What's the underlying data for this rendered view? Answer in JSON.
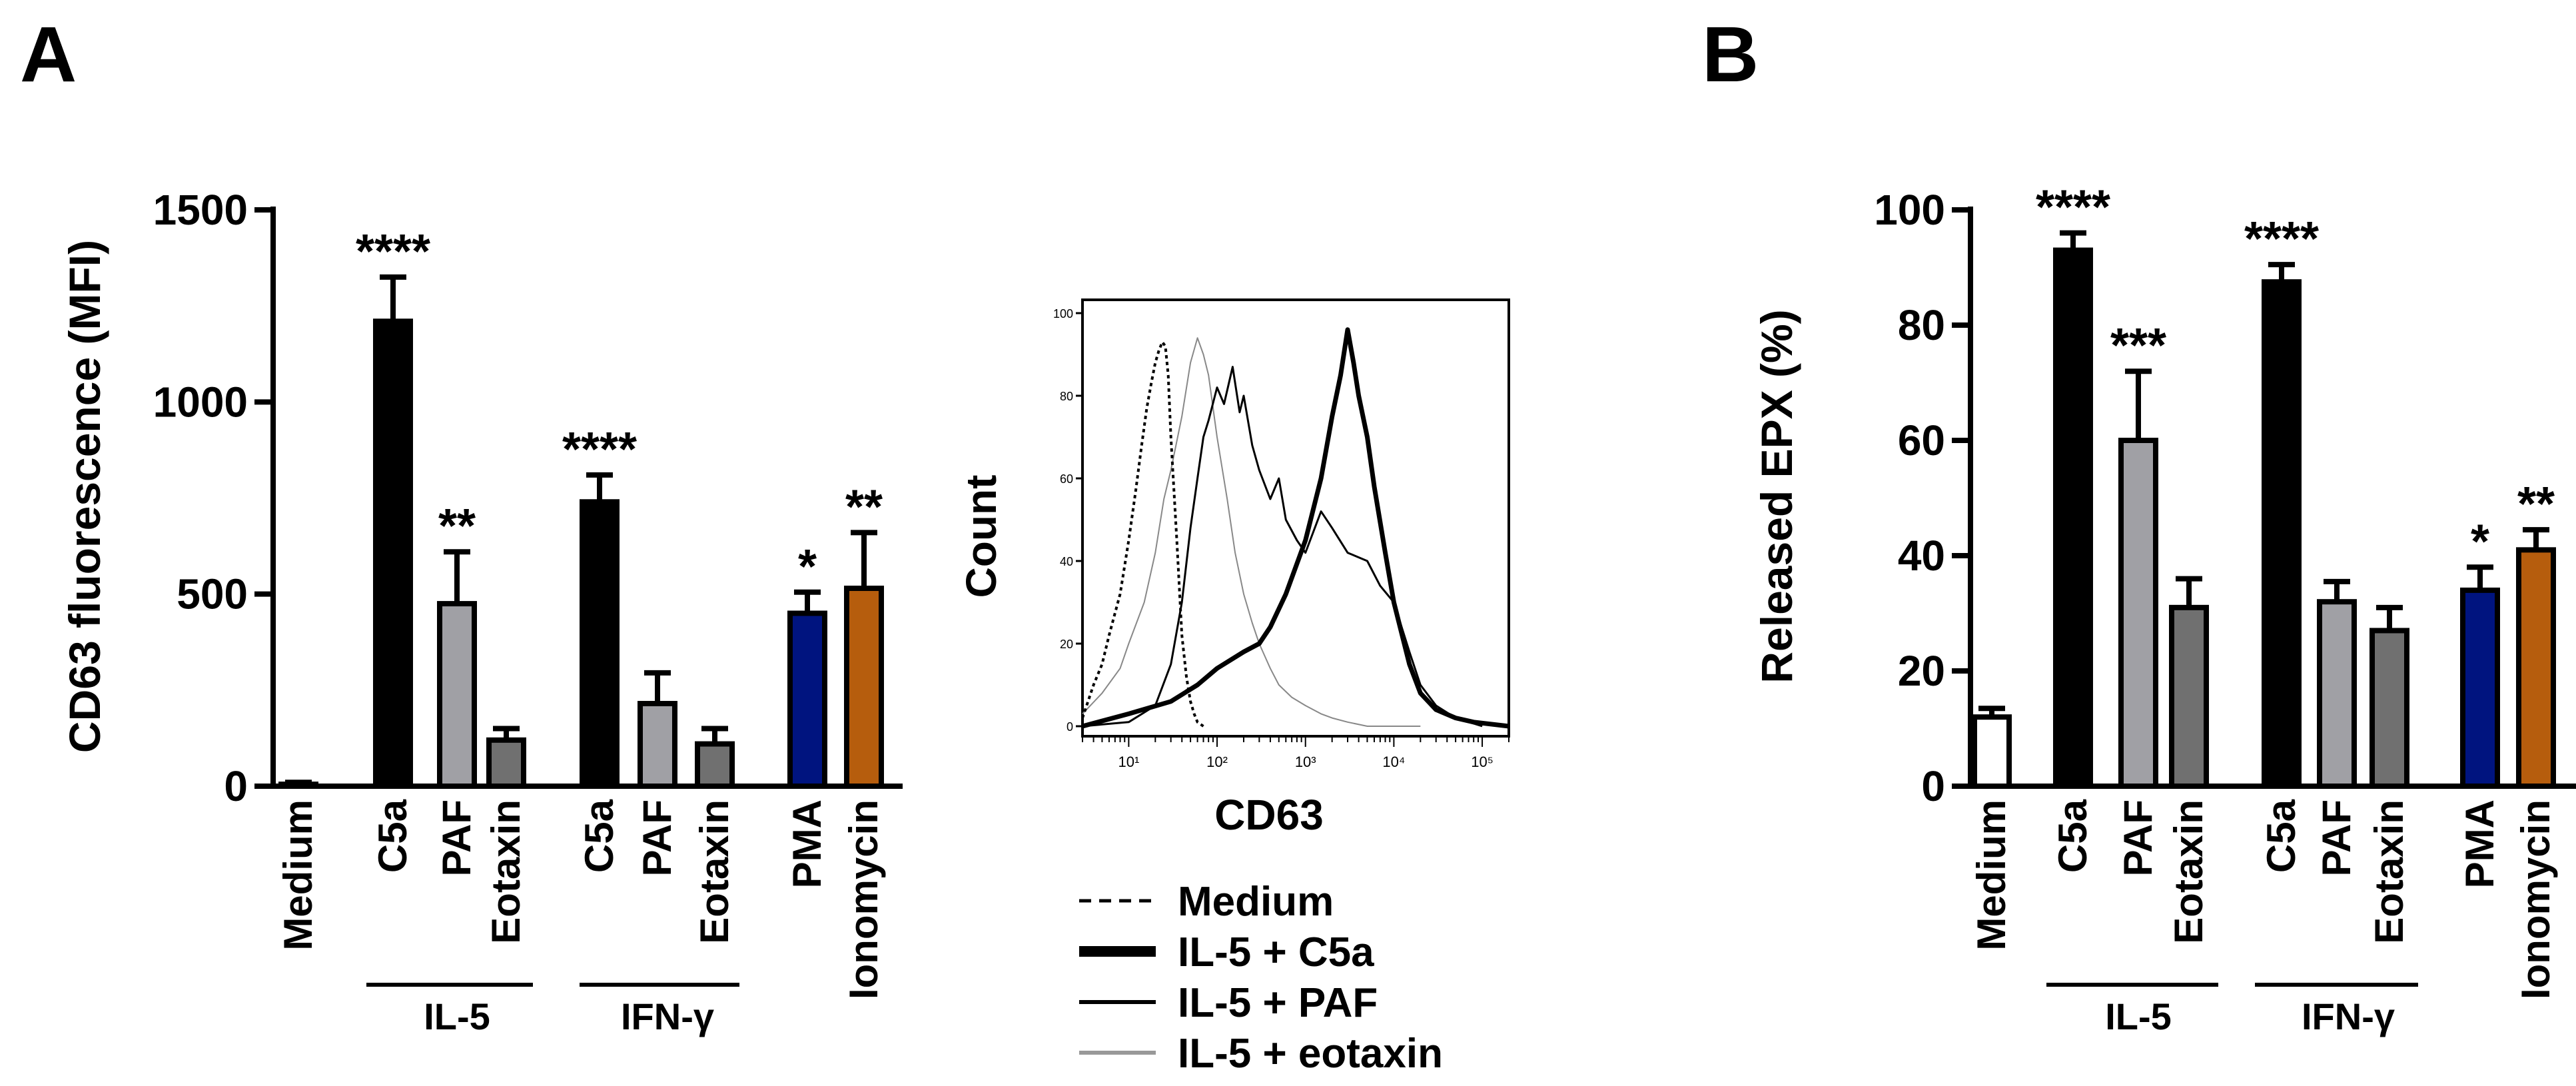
{
  "panels": {
    "a": "A",
    "b": "B"
  },
  "group_labels": {
    "il5": "IL-5",
    "ifng": "IFN-γ"
  },
  "chart_data": [
    {
      "type": "bar",
      "id": "A",
      "title": "",
      "xlabel": "",
      "ylabel": "CD63 fluorescence (MFI)",
      "ylim": [
        0,
        1500
      ],
      "yticks": [
        0,
        500,
        1000,
        1500
      ],
      "categories": [
        "Medium",
        "C5a",
        "PAF",
        "Eotaxin",
        "C5a",
        "PAF",
        "Eotaxin",
        "PMA",
        "Ionomycin"
      ],
      "groups": [
        "",
        "IL-5",
        "IL-5",
        "IL-5",
        "IFN-γ",
        "IFN-γ",
        "IFN-γ",
        "",
        ""
      ],
      "values": [
        5,
        1210,
        475,
        120,
        740,
        215,
        110,
        450,
        515
      ],
      "errors": [
        5,
        115,
        135,
        30,
        70,
        80,
        40,
        55,
        145
      ],
      "significance": [
        "",
        "****",
        "**",
        "",
        "****",
        "",
        "",
        "*",
        "**"
      ],
      "colors": [
        "#ffffff",
        "#000000",
        "#a0a0a5",
        "#707070",
        "#000000",
        "#a0a0a5",
        "#707070",
        "#00147f",
        "#b65d0d"
      ]
    },
    {
      "type": "line",
      "id": "A-histogram",
      "title": "",
      "xlabel": "CD63",
      "ylabel": "Count",
      "xscale": "log",
      "xlim": [
        3,
        200000
      ],
      "ylim": [
        0,
        100
      ],
      "yticks": [
        0,
        20,
        40,
        60,
        80,
        100
      ],
      "xticks": [
        "10¹",
        "10²",
        "10³",
        "10⁴",
        "10⁵"
      ],
      "legend_position": "below",
      "series": [
        {
          "name": "Medium",
          "style": "dashed",
          "x": [
            3,
            4,
            5,
            6,
            8,
            10,
            12,
            14,
            16,
            18,
            20,
            22,
            24,
            26,
            28,
            30,
            35,
            40,
            45,
            50,
            55,
            60,
            70
          ],
          "y": [
            2,
            10,
            15,
            22,
            32,
            45,
            57,
            68,
            77,
            83,
            88,
            91,
            93,
            92,
            85,
            70,
            45,
            22,
            12,
            6,
            3,
            1,
            0
          ]
        },
        {
          "name": "IL-5 + C5a",
          "style": "thick",
          "x": [
            3,
            10,
            30,
            60,
            100,
            200,
            300,
            400,
            600,
            1000,
            1500,
            2000,
            2500,
            3000,
            3500,
            4000,
            5000,
            6000,
            8000,
            10000,
            15000,
            20000,
            30000,
            50000,
            80000,
            200000
          ],
          "y": [
            0,
            3,
            6,
            10,
            14,
            18,
            20,
            24,
            32,
            45,
            60,
            75,
            85,
            96,
            88,
            80,
            70,
            58,
            42,
            30,
            15,
            8,
            4,
            2,
            1,
            0
          ]
        },
        {
          "name": "IL-5 + PAF",
          "style": "thin",
          "x": [
            3,
            10,
            20,
            30,
            40,
            50,
            60,
            70,
            80,
            100,
            120,
            150,
            180,
            200,
            250,
            300,
            400,
            500,
            600,
            800,
            1000,
            1500,
            2000,
            3000,
            5000,
            7000,
            10000,
            15000,
            20000,
            30000,
            50000,
            100000
          ],
          "y": [
            0,
            1,
            5,
            15,
            30,
            48,
            60,
            70,
            74,
            82,
            78,
            87,
            76,
            80,
            68,
            62,
            55,
            60,
            50,
            45,
            42,
            52,
            48,
            42,
            40,
            34,
            30,
            18,
            10,
            5,
            2,
            0
          ]
        },
        {
          "name": "IL-5 + eotaxin",
          "style": "gray",
          "x": [
            3,
            5,
            8,
            10,
            15,
            20,
            25,
            30,
            40,
            50,
            60,
            70,
            80,
            100,
            130,
            160,
            200,
            250,
            300,
            400,
            500,
            700,
            1000,
            1500,
            2000,
            3000,
            5000,
            10000,
            20000
          ],
          "y": [
            3,
            8,
            14,
            20,
            30,
            42,
            55,
            62,
            75,
            88,
            94,
            90,
            85,
            70,
            55,
            42,
            32,
            25,
            20,
            14,
            10,
            7,
            5,
            3,
            2,
            1,
            0,
            0,
            0
          ]
        }
      ]
    },
    {
      "type": "bar",
      "id": "B",
      "title": "",
      "xlabel": "",
      "ylabel": "Released EPX (%)",
      "ylim": [
        0,
        100
      ],
      "yticks": [
        0,
        20,
        40,
        60,
        80,
        100
      ],
      "categories": [
        "Medium",
        "C5a",
        "PAF",
        "Eotaxin",
        "C5a",
        "PAF",
        "Eotaxin",
        "PMA",
        "Ionomycin"
      ],
      "groups": [
        "",
        "IL-5",
        "IL-5",
        "IL-5",
        "IFN-γ",
        "IFN-γ",
        "IFN-γ",
        "",
        ""
      ],
      "values": [
        12,
        93,
        60,
        31,
        87.5,
        32,
        27,
        34,
        41
      ],
      "errors": [
        1.5,
        3,
        12,
        5,
        3,
        3.5,
        4,
        4,
        3.5
      ],
      "significance": [
        "",
        "****",
        "***",
        "",
        "****",
        "",
        "",
        "*",
        "**"
      ],
      "colors": [
        "#ffffff",
        "#000000",
        "#a0a0a5",
        "#707070",
        "#000000",
        "#a0a0a5",
        "#707070",
        "#00147f",
        "#b65d0d"
      ]
    }
  ]
}
